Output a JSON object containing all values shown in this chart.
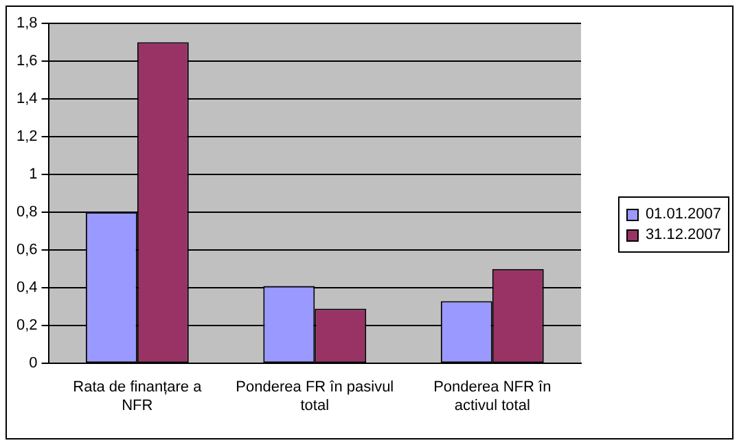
{
  "chart_data": {
    "type": "bar",
    "categories": [
      "Rata de finanțare a NFR",
      "Ponderea FR în pasivul total",
      "Ponderea NFR în activul total"
    ],
    "series": [
      {
        "name": "01.01.2007",
        "color": "#9999ff",
        "values": [
          0.8,
          0.41,
          0.33
        ]
      },
      {
        "name": "31.12.2007",
        "color": "#993366",
        "values": [
          1.7,
          0.29,
          0.5
        ]
      }
    ],
    "ylim": [
      0,
      1.8
    ],
    "yticks": [
      {
        "value": 0,
        "label": "0"
      },
      {
        "value": 0.2,
        "label": "0,2"
      },
      {
        "value": 0.4,
        "label": "0,4"
      },
      {
        "value": 0.6,
        "label": "0,6"
      },
      {
        "value": 0.8,
        "label": "0,8"
      },
      {
        "value": 1,
        "label": "1"
      },
      {
        "value": 1.2,
        "label": "1,2"
      },
      {
        "value": 1.4,
        "label": "1,4"
      },
      {
        "value": 1.6,
        "label": "1,6"
      },
      {
        "value": 1.8,
        "label": "1,8"
      }
    ],
    "grid": "y",
    "legend": "right"
  }
}
